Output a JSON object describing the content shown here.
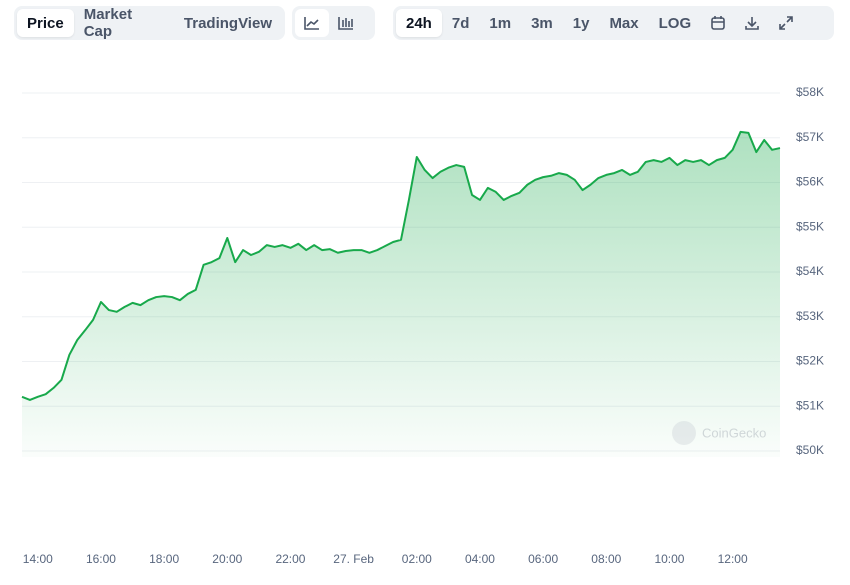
{
  "toolbar": {
    "view_tabs": [
      "Price",
      "Market Cap",
      "TradingView"
    ],
    "range_tabs": [
      "24h",
      "7d",
      "1m",
      "3m",
      "1y",
      "Max",
      "LOG"
    ]
  },
  "chart_data": {
    "type": "area",
    "color": "#18a94b",
    "grid": true,
    "watermark": "CoinGecko",
    "categories": [
      null,
      null,
      "14:00",
      null,
      null,
      null,
      null,
      null,
      null,
      null,
      "16:00",
      null,
      null,
      null,
      null,
      null,
      null,
      null,
      "18:00",
      null,
      null,
      null,
      null,
      null,
      null,
      null,
      "20:00",
      null,
      null,
      null,
      null,
      null,
      null,
      null,
      "22:00",
      null,
      null,
      null,
      null,
      null,
      null,
      null,
      "27. Feb",
      null,
      null,
      null,
      null,
      null,
      null,
      null,
      "02:00",
      null,
      null,
      null,
      null,
      null,
      null,
      null,
      "04:00",
      null,
      null,
      null,
      null,
      null,
      null,
      null,
      "06:00",
      null,
      null,
      null,
      null,
      null,
      null,
      null,
      "08:00",
      null,
      null,
      null,
      null,
      null,
      null,
      null,
      "10:00",
      null,
      null,
      null,
      null,
      null,
      null,
      null,
      "12:00",
      null,
      null,
      null,
      null,
      null,
      null
    ],
    "values": [
      51210,
      51140,
      51210,
      51270,
      51410,
      51590,
      52150,
      52480,
      52700,
      52930,
      53330,
      53150,
      53110,
      53220,
      53310,
      53260,
      53370,
      53440,
      53460,
      53440,
      53370,
      53510,
      53600,
      54160,
      54220,
      54310,
      54760,
      54220,
      54490,
      54380,
      54450,
      54600,
      54560,
      54600,
      54540,
      54630,
      54490,
      54600,
      54490,
      54510,
      54430,
      54470,
      54490,
      54490,
      54430,
      54490,
      54580,
      54670,
      54720,
      55610,
      56570,
      56280,
      56100,
      56240,
      56330,
      56390,
      56350,
      55720,
      55610,
      55880,
      55790,
      55610,
      55700,
      55770,
      55950,
      56060,
      56120,
      56150,
      56210,
      56170,
      56060,
      55830,
      55950,
      56100,
      56170,
      56210,
      56280,
      56170,
      56240,
      56460,
      56500,
      56460,
      56550,
      56390,
      56500,
      56460,
      56500,
      56390,
      56500,
      56550,
      56730,
      57130,
      57110,
      56680,
      56950,
      56730,
      56770
    ],
    "ylim": [
      50000,
      58000
    ],
    "yticks": [
      {
        "value": 50000,
        "label": "$50K"
      },
      {
        "value": 51000,
        "label": "$51K"
      },
      {
        "value": 52000,
        "label": "$52K"
      },
      {
        "value": 53000,
        "label": "$53K"
      },
      {
        "value": 54000,
        "label": "$54K"
      },
      {
        "value": 55000,
        "label": "$55K"
      },
      {
        "value": 56000,
        "label": "$56K"
      },
      {
        "value": 57000,
        "label": "$57K"
      },
      {
        "value": 58000,
        "label": "$58K"
      }
    ]
  }
}
